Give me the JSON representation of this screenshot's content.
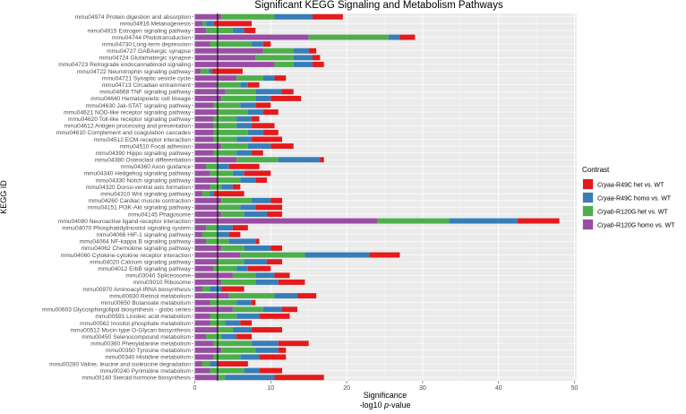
{
  "chart_data": {
    "type": "bar",
    "stacked": true,
    "orientation": "horizontal",
    "title": "Significant KEGG Signaling and Metabolism Pathways",
    "xlabel_line1": "Significance",
    "xlabel_line2_prefix": "-log10 ",
    "xlabel_line2_italic": "p",
    "xlabel_line2_suffix": "-value",
    "ylabel": "KEGG ID",
    "xlim": [
      0,
      50
    ],
    "xticks": [
      0,
      10,
      20,
      30,
      40,
      50
    ],
    "threshold": 3.0,
    "grid": true,
    "legend_position": "right",
    "legend": {
      "title": "Contrast",
      "items": [
        {
          "key": "r49c_het",
          "italic": "Cryaa",
          "text": "-R49C het vs. WT",
          "color": "#e41a1c"
        },
        {
          "key": "r49c_homo",
          "italic": "Cryaa",
          "text": "-R49C homo vs. WT",
          "color": "#377eb8"
        },
        {
          "key": "r120g_het",
          "italic": "Cryab",
          "text": "-R120G het vs. WT",
          "color": "#4daf4a"
        },
        {
          "key": "r120g_homo",
          "italic": "Cryab",
          "text": "-R120G homo vs. WT",
          "color": "#984ea3"
        }
      ]
    },
    "stack_order": [
      "r120g_homo",
      "r120g_het",
      "r49c_homo",
      "r49c_het"
    ],
    "categories": [
      "mmu04974 Protein digestion and absorption",
      "mmu04916 Melanogenesis",
      "mmu04915 Estrogen signaling pathway",
      "mmu04744 Phototransduction",
      "mmu04730 Long-term depression",
      "mmu04727 GABAergic synapse",
      "mmu04724 Glutamatergic synapse",
      "mmu04723 Retrograde endocannabinoid signaling",
      "mmu04722 Neurotrophin signaling pathway",
      "mmu04721 Synaptic vesicle cycle",
      "mmu04713 Circadian entrainment",
      "mmu04668 TNF signaling pathway",
      "mmu04640 Hematopoietic cell lineage",
      "mmu04630 Jak-STAT signaling pathway",
      "mmu04621 NOD-like receptor signaling pathway",
      "mmu04620 Toll-like receptor signaling pathway",
      "mmu04612 Antigen processing and presentation",
      "mmu04610 Complement and coagulation cascades",
      "mmu04512 ECM-receptor interaction",
      "mmu04510 Focal adhesion",
      "mmu04390 Hippo signaling pathway",
      "mmu04380 Osteoclast differentiation",
      "mmu04360 Axon guidance",
      "mmu04340 Hedgehog signaling pathway",
      "mmu04330 Notch signaling pathway",
      "mmu04320 Dorso-ventral axis formation",
      "mmu04310 Wnt signaling pathway",
      "mmu04260 Cardiac muscle contraction",
      "mmu04151 PI3K-Akt signaling pathway",
      "mmu04145 Phagosome",
      "mmu04080 Neuroactive ligand-receptor interaction",
      "mmu04070 Phosphatidylinositol signaling system",
      "mmu04066 HIF-1 signaling pathway",
      "mmu04064 NF-kappa B signaling pathway",
      "mmu04062 Chemokine signaling pathway",
      "mmu04060 Cytokine-cytokine receptor interaction",
      "mmu04020 Calcium signaling pathway",
      "mmu04012 ErbB signaling pathway",
      "mmu03040 Spliceosome",
      "mmu03010 Ribosome",
      "mmu00970 Aminoacyl-tRNA biosynthesis",
      "mmu00830 Retinol metabolism",
      "mmu00650 Butanoate metabolism",
      "mmu00603 Glycosphingolipid biosynthesis - globo series",
      "mmu00591 Linoleic acid metabolism",
      "mmu00562 Inositol phosphate metabolism",
      "mmu00512 Mucin type O-Glycan biosynthesis",
      "mmu00450 Selenocompound metabolism",
      "mmu00360 Phenylalanine metabolism",
      "mmu00350 Tyrosine metabolism",
      "mmu00340 Histidine metabolism",
      "mmu00280 Valine, leucine and isoleucine degradation",
      "mmu00240 Pyrimidine metabolism",
      "mmu00140 Steroid hormone biosynthesis"
    ],
    "series": {
      "r120g_homo": [
        3.5,
        1.0,
        1.5,
        15.0,
        2.0,
        9.0,
        8.0,
        10.5,
        0.8,
        5.5,
        3.0,
        4.0,
        3.5,
        2.5,
        3.0,
        2.5,
        2.5,
        2.5,
        2.5,
        3.5,
        2.5,
        5.5,
        1.5,
        2.0,
        3.0,
        2.0,
        1.0,
        3.5,
        3.0,
        3.5,
        24.0,
        1.5,
        1.0,
        1.5,
        3.5,
        6.0,
        3.0,
        2.5,
        5.0,
        3.5,
        1.0,
        4.5,
        2.0,
        5.0,
        2.0,
        2.0,
        3.0,
        1.5,
        2.5,
        3.5,
        2.5,
        1.0,
        2.0,
        3.0
      ],
      "r120g_het": [
        7.0,
        0.5,
        3.5,
        10.5,
        5.5,
        4.0,
        5.0,
        2.5,
        1.0,
        3.5,
        3.0,
        4.0,
        4.5,
        3.5,
        4.0,
        3.0,
        3.0,
        4.5,
        3.0,
        3.5,
        3.0,
        5.5,
        1.5,
        3.0,
        3.0,
        1.5,
        1.0,
        4.0,
        3.0,
        3.0,
        9.5,
        1.5,
        2.0,
        3.0,
        3.0,
        8.5,
        3.5,
        3.0,
        3.0,
        4.5,
        1.0,
        6.0,
        3.5,
        4.0,
        3.5,
        2.0,
        2.0,
        2.0,
        5.0,
        4.5,
        3.5,
        1.0,
        4.5,
        1.0
      ],
      "r49c_homo": [
        5.0,
        1.0,
        1.5,
        1.5,
        1.5,
        2.0,
        2.5,
        2.5,
        0.5,
        1.5,
        1.0,
        3.5,
        2.0,
        2.0,
        2.0,
        2.0,
        2.0,
        2.0,
        2.0,
        3.0,
        2.0,
        5.5,
        1.5,
        1.5,
        2.0,
        1.5,
        0.5,
        2.5,
        2.0,
        3.0,
        9.0,
        2.0,
        1.5,
        3.5,
        3.5,
        8.5,
        3.0,
        1.5,
        2.5,
        3.0,
        1.5,
        3.0,
        2.0,
        2.5,
        3.0,
        2.0,
        2.5,
        2.0,
        3.5,
        3.0,
        2.5,
        1.0,
        2.0,
        6.5
      ],
      "r49c_het": [
        4.0,
        5.0,
        1.5,
        2.0,
        1.0,
        1.0,
        1.0,
        1.5,
        4.0,
        1.5,
        1.5,
        1.5,
        4.0,
        2.0,
        2.0,
        1.0,
        3.0,
        2.0,
        4.0,
        3.0,
        1.5,
        0.5,
        4.0,
        3.5,
        1.5,
        1.0,
        4.0,
        1.5,
        3.5,
        2.0,
        5.5,
        2.0,
        1.5,
        0.5,
        1.5,
        4.0,
        2.0,
        3.0,
        2.0,
        3.5,
        3.0,
        2.5,
        0.5,
        2.0,
        4.0,
        1.5,
        4.0,
        2.0,
        4.0,
        1.0,
        3.5,
        4.0,
        3.0,
        6.5
      ]
    }
  }
}
